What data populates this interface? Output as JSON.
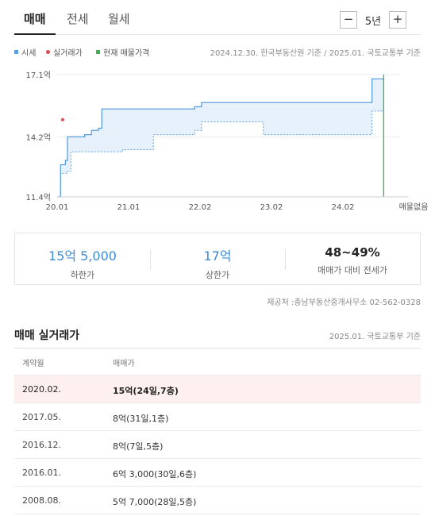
{
  "tabs": [
    {
      "label": "매매",
      "active": true
    },
    {
      "label": "전세",
      "active": false
    },
    {
      "label": "월세",
      "active": false
    }
  ],
  "period": {
    "minus": "−",
    "label": "5년",
    "plus": "+"
  },
  "legend": [
    {
      "label": "시세",
      "color": "#5a9ee0",
      "shape": "square"
    },
    {
      "label": "실거래가",
      "color": "#e04a4a",
      "shape": "circle"
    },
    {
      "label": "현재 매물가격",
      "color": "#3cb44b",
      "shape": "square"
    }
  ],
  "source": "2024.12.30. 한국부동산원 기준 / 2025.01. 국토교통부 기준",
  "chart_data": {
    "type": "area",
    "y_ticks": [
      "17.1억",
      "14.2억",
      "11.4억"
    ],
    "x_ticks": [
      "20.01",
      "21.01",
      "22.02",
      "23.02",
      "24.02",
      "매물없음"
    ],
    "ylim": [
      11.4,
      17.1
    ],
    "xlim": [
      2020.0,
      2025.0
    ],
    "series": [
      {
        "name": "시세",
        "role": "upper",
        "x": [
          2020.0,
          2020.05,
          2020.12,
          2020.15,
          2020.4,
          2020.5,
          2020.6,
          2020.65,
          2021.0,
          2022.0,
          2022.1,
          2023.0,
          2024.0,
          2024.55,
          2024.58,
          2024.75
        ],
        "y": [
          11.4,
          12.9,
          13.1,
          14.2,
          14.3,
          14.5,
          14.6,
          15.5,
          15.5,
          15.6,
          15.8,
          15.8,
          15.8,
          15.8,
          16.9,
          16.9
        ]
      },
      {
        "name": "시세",
        "role": "lower",
        "x": [
          2020.0,
          2020.05,
          2020.15,
          2020.2,
          2020.6,
          2020.95,
          2021.4,
          2022.0,
          2022.1,
          2022.9,
          2023.0,
          2024.0,
          2024.55,
          2024.58,
          2024.75
        ],
        "y": [
          11.4,
          12.5,
          12.6,
          13.5,
          13.5,
          13.6,
          14.3,
          14.5,
          14.9,
          14.9,
          14.3,
          14.3,
          14.3,
          15.4,
          15.5
        ]
      },
      {
        "name": "실거래가",
        "x": [
          2020.08
        ],
        "y": [
          15.0
        ]
      }
    ],
    "current_listing_x": 2024.75
  },
  "summary": [
    {
      "value": "15억 5,000",
      "label": "하한가"
    },
    {
      "value": "17억",
      "label": "상한가"
    },
    {
      "value": "48~49%",
      "label": "매매가 대비 전세가"
    }
  ],
  "provider": "제공처 :충남부동산중개사무소 02-562-0328",
  "deals": {
    "title": "매매 실거래가",
    "sub": "2025.01. 국토교통부 기준",
    "headers": [
      "계약월",
      "매매가"
    ],
    "rows": [
      {
        "date": "2020.02.",
        "price": "15억(24일,7층)",
        "highlight": true
      },
      {
        "date": "2017.05.",
        "price": "8억(31일,1층)",
        "highlight": false
      },
      {
        "date": "2016.12.",
        "price": "8억(7일,5층)",
        "highlight": false
      },
      {
        "date": "2016.01.",
        "price": "6억 3,000(30일,6층)",
        "highlight": false
      },
      {
        "date": "2008.08.",
        "price": "5억 7,000(28일,5층)",
        "highlight": false
      }
    ]
  }
}
